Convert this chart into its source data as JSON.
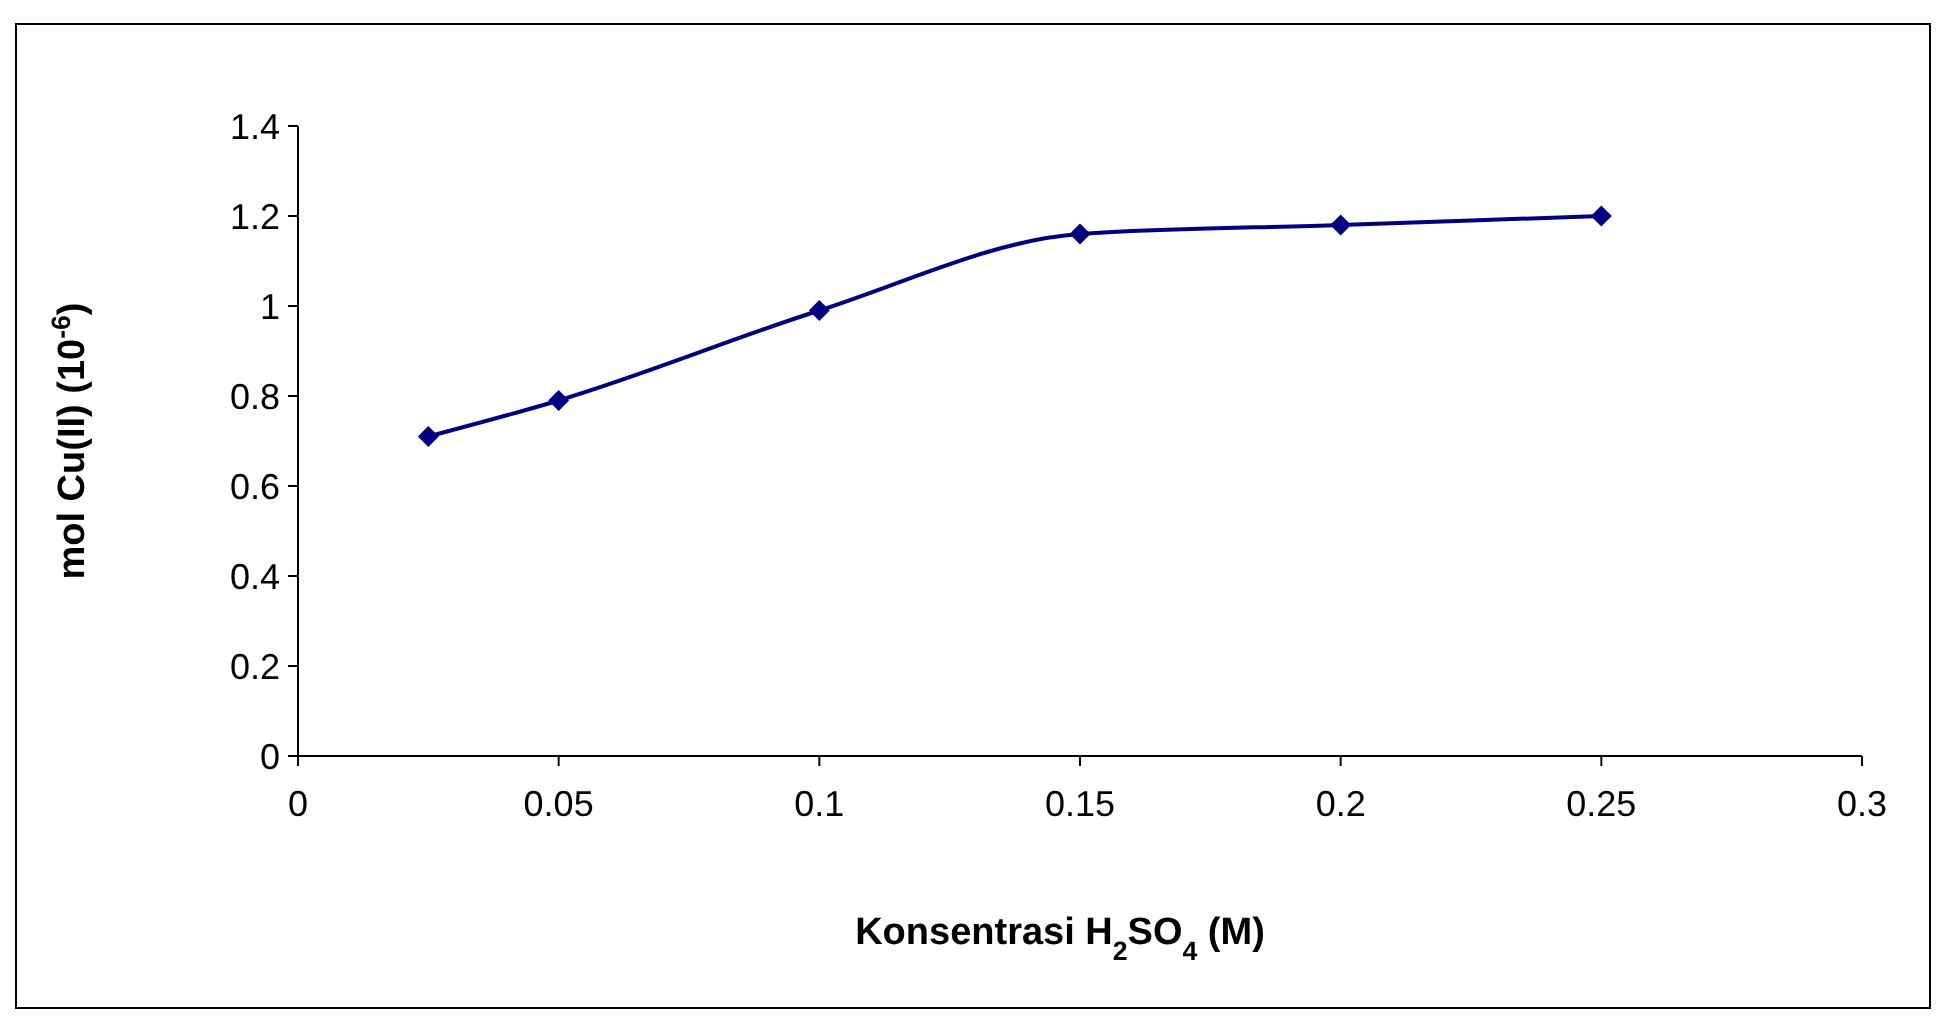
{
  "chart_data": {
    "type": "line",
    "xlabel": "Konsentrasi H$_{2}$SO$_{4}$ (M)",
    "ylabel": "mol Cu(II) (10$^{-6}$)",
    "x": [
      0.025,
      0.05,
      0.1,
      0.15,
      0.2,
      0.25
    ],
    "series": [
      {
        "color": "#000080",
        "values": [
          0.71,
          0.79,
          0.99,
          1.16,
          1.18,
          1.2
        ]
      }
    ],
    "xlim": [
      0,
      0.3
    ],
    "xticks": [
      0,
      0.05,
      0.1,
      0.15,
      0.2,
      0.25,
      0.3
    ],
    "ylim": [
      0,
      1.4
    ],
    "yticks": [
      0,
      0.2,
      0.4,
      0.6,
      0.8,
      1,
      1.2,
      1.4
    ],
    "grid": false,
    "marker": "diamond",
    "line_style": "solid"
  }
}
